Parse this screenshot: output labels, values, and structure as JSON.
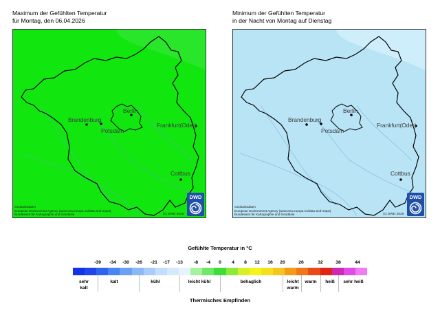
{
  "left_panel": {
    "title_line1": "Maximum der Gefühlten Temperatur",
    "title_line2": "für Montag, den 06.04.2026",
    "fill_color": "#11e60f",
    "fill_color_light": "#2ae62a"
  },
  "right_panel": {
    "title_line1": "Minimum der Gefühlten Temperatur",
    "title_line2": "in der Nacht von Montag auf Dienstag",
    "fill_color": "#b8e4f6",
    "fill_color_light": "#cfeefb"
  },
  "cities": {
    "berlin": "Berlin",
    "brandenburg": "Brandenburg",
    "potsdam": "Potsdam",
    "frankfurt": "Frankfurt(Oder)",
    "cottbus": "Cottbus"
  },
  "credits": {
    "line1": "Geobasisdaten",
    "line2": "European Environment Agency (www.eea.europa.eu/data-and-maps)",
    "line3": "Bundesamt für Kartographie und Geodäsie",
    "copyright": "(c) DWD 2025",
    "logo_text": "DWD"
  },
  "legend": {
    "title": "Gefühlte Temperatur in °C",
    "footer": "Thermisches Empfinden",
    "ticks": [
      "-39",
      "-34",
      "-30",
      "-26",
      "-21",
      "-17",
      "-13",
      "-8",
      "-4",
      "0",
      "4",
      "8",
      "12",
      "16",
      "20",
      "26",
      "32",
      "38",
      "44"
    ],
    "colors": [
      "#1432e6",
      "#2046ea",
      "#2f64ee",
      "#4a86f2",
      "#6ba0f4",
      "#8cb8f6",
      "#a9ccf8",
      "#c3ddfa",
      "#d6e9fb",
      "#e4f3fc",
      "#a7f29e",
      "#6fe86a",
      "#3fdc3a",
      "#8cea3a",
      "#d8f028",
      "#f4f41a",
      "#f4e01e",
      "#f6c61c",
      "#f49c18",
      "#f0781a",
      "#ea4a18",
      "#e02416",
      "#cc2ab0",
      "#e04ce8",
      "#f07cf4"
    ],
    "categories": [
      {
        "label_line1": "sehr",
        "label_line2": "kalt"
      },
      {
        "label_line1": "kalt",
        "label_line2": ""
      },
      {
        "label_line1": "kühl",
        "label_line2": ""
      },
      {
        "label_line1": "leicht kühl",
        "label_line2": ""
      },
      {
        "label_line1": "behaglich",
        "label_line2": ""
      },
      {
        "label_line1": "leicht",
        "label_line2": "warm"
      },
      {
        "label_line1": "warm",
        "label_line2": ""
      },
      {
        "label_line1": "heiß",
        "label_line2": ""
      },
      {
        "label_line1": "sehr heiß",
        "label_line2": ""
      }
    ]
  }
}
